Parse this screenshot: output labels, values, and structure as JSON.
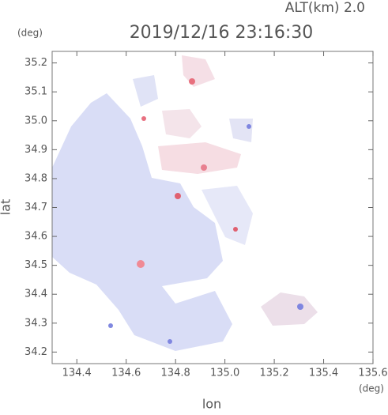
{
  "chart_data": {
    "type": "map",
    "title": "2019/12/16 23:16:30",
    "altitude_label": "ALT(km) 2.0",
    "x_label": "lon",
    "y_label": "lat",
    "x_unit": "(deg)",
    "y_unit": "(deg)",
    "xlim": [
      134.3,
      135.6
    ],
    "ylim": [
      34.16,
      35.24
    ],
    "xticks": [
      134.4,
      134.6,
      134.8,
      {
        "value": 135,
        "label": "135.0"
      },
      135.2,
      135.4,
      135.6
    ],
    "yticks": [
      34.2,
      34.3,
      34.4,
      34.5,
      34.6,
      34.7,
      34.8,
      34.9,
      {
        "value": 35,
        "label": "35.0"
      },
      35.1,
      35.2
    ]
  }
}
